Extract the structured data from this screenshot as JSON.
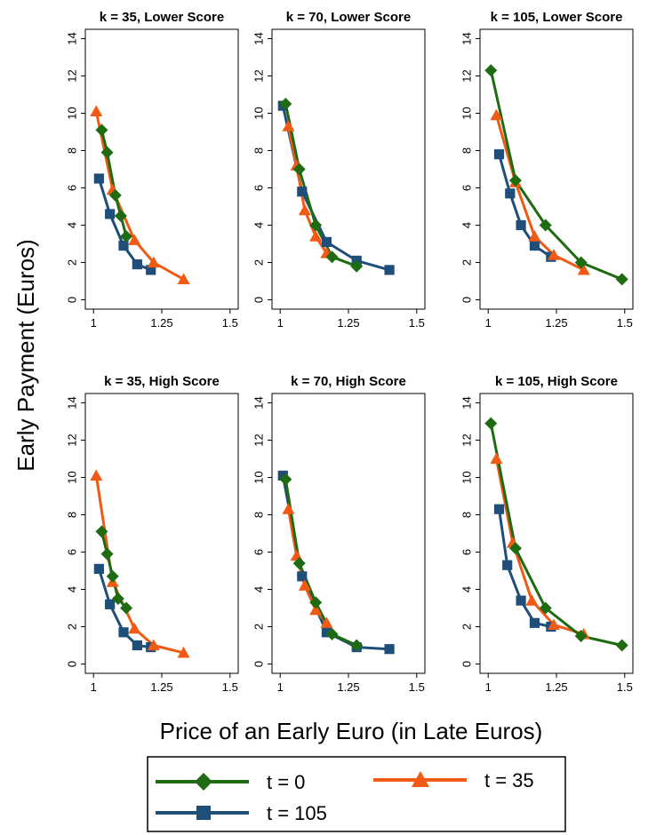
{
  "colors": {
    "t0": "#1e6b12",
    "t35": "#f05a14",
    "t105": "#1f4e79",
    "frame": "#000000",
    "background": "#ffffff"
  },
  "labels": {
    "ylabel": "Early Payment (Euros)",
    "xlabel": "Price of an Early Euro (in Late Euros)"
  },
  "legend": {
    "items": [
      {
        "label": "t = 0",
        "series": "t0",
        "marker": "diamond"
      },
      {
        "label": "t = 35",
        "series": "t35",
        "marker": "triangle"
      },
      {
        "label": "t = 105",
        "series": "t105",
        "marker": "square"
      }
    ]
  },
  "chart_data": [
    {
      "type": "line",
      "title": "k = 35, Lower Score",
      "xticks": [
        "1",
        "1.25",
        "1.5"
      ],
      "yticks": [
        "0",
        "2",
        "4",
        "6",
        "8",
        "10",
        "12",
        "14"
      ],
      "xlim": [
        0.97,
        1.53
      ],
      "ylim": [
        -0.5,
        14.5
      ],
      "series": [
        {
          "key": "t0",
          "x": [
            1.03,
            1.05,
            1.08,
            1.1,
            1.12
          ],
          "y": [
            9.1,
            7.9,
            5.6,
            4.5,
            3.4
          ]
        },
        {
          "key": "t35",
          "x": [
            1.01,
            1.07,
            1.15,
            1.22,
            1.33
          ],
          "y": [
            10.1,
            5.9,
            3.2,
            2.0,
            1.1
          ]
        },
        {
          "key": "t105",
          "x": [
            1.02,
            1.06,
            1.11,
            1.16,
            1.21
          ],
          "y": [
            6.5,
            4.6,
            2.9,
            1.9,
            1.6
          ]
        }
      ]
    },
    {
      "type": "line",
      "title": "k = 70, Lower Score",
      "xticks": [
        "1",
        "1.25",
        "1.5"
      ],
      "yticks": [
        "0",
        "2",
        "4",
        "6",
        "8",
        "10",
        "12",
        "14"
      ],
      "xlim": [
        0.97,
        1.53
      ],
      "ylim": [
        -0.5,
        14.5
      ],
      "series": [
        {
          "key": "t0",
          "x": [
            1.02,
            1.07,
            1.13,
            1.19,
            1.28
          ],
          "y": [
            10.5,
            7.0,
            4.0,
            2.3,
            1.8
          ]
        },
        {
          "key": "t35",
          "x": [
            1.03,
            1.06,
            1.09,
            1.13,
            1.17
          ],
          "y": [
            9.3,
            7.2,
            4.8,
            3.4,
            2.5
          ]
        },
        {
          "key": "t105",
          "x": [
            1.01,
            1.08,
            1.17,
            1.28,
            1.4
          ],
          "y": [
            10.4,
            5.8,
            3.1,
            2.1,
            1.6
          ]
        }
      ]
    },
    {
      "type": "line",
      "title": "k = 105, Lower Score",
      "xticks": [
        "1",
        "1.25",
        "1.5"
      ],
      "yticks": [
        "0",
        "2",
        "4",
        "6",
        "8",
        "10",
        "12",
        "14"
      ],
      "xlim": [
        0.97,
        1.53
      ],
      "ylim": [
        -0.5,
        14.5
      ],
      "series": [
        {
          "key": "t0",
          "x": [
            1.01,
            1.1,
            1.21,
            1.34,
            1.49
          ],
          "y": [
            12.3,
            6.4,
            4.0,
            2.0,
            1.1
          ]
        },
        {
          "key": "t35",
          "x": [
            1.03,
            1.1,
            1.17,
            1.24,
            1.35
          ],
          "y": [
            9.9,
            6.3,
            3.4,
            2.4,
            1.6
          ]
        },
        {
          "key": "t105",
          "x": [
            1.04,
            1.08,
            1.12,
            1.17,
            1.23
          ],
          "y": [
            7.8,
            5.7,
            4.0,
            2.9,
            2.3
          ]
        }
      ]
    },
    {
      "type": "line",
      "title": "k = 35, High Score",
      "xticks": [
        "1",
        "1.25",
        "1.5"
      ],
      "yticks": [
        "0",
        "2",
        "4",
        "6",
        "8",
        "10",
        "12",
        "14"
      ],
      "xlim": [
        0.97,
        1.53
      ],
      "ylim": [
        -0.5,
        14.5
      ],
      "series": [
        {
          "key": "t0",
          "x": [
            1.03,
            1.05,
            1.07,
            1.09,
            1.12
          ],
          "y": [
            7.1,
            5.9,
            4.7,
            3.5,
            3.0
          ]
        },
        {
          "key": "t35",
          "x": [
            1.01,
            1.07,
            1.15,
            1.22,
            1.33
          ],
          "y": [
            10.1,
            4.4,
            1.9,
            1.0,
            0.6
          ]
        },
        {
          "key": "t105",
          "x": [
            1.02,
            1.06,
            1.11,
            1.16,
            1.21
          ],
          "y": [
            5.1,
            3.2,
            1.7,
            1.0,
            0.9
          ]
        }
      ]
    },
    {
      "type": "line",
      "title": "k = 70, High Score",
      "xticks": [
        "1",
        "1.25",
        "1.5"
      ],
      "yticks": [
        "0",
        "2",
        "4",
        "6",
        "8",
        "10",
        "12",
        "14"
      ],
      "xlim": [
        0.97,
        1.53
      ],
      "ylim": [
        -0.5,
        14.5
      ],
      "series": [
        {
          "key": "t0",
          "x": [
            1.02,
            1.07,
            1.13,
            1.19,
            1.28
          ],
          "y": [
            9.9,
            5.4,
            3.3,
            1.6,
            1.0
          ]
        },
        {
          "key": "t35",
          "x": [
            1.03,
            1.06,
            1.09,
            1.13,
            1.17
          ],
          "y": [
            8.3,
            5.8,
            4.2,
            2.9,
            2.2
          ]
        },
        {
          "key": "t105",
          "x": [
            1.01,
            1.08,
            1.17,
            1.28,
            1.4
          ],
          "y": [
            10.1,
            4.7,
            1.7,
            0.9,
            0.8
          ]
        }
      ]
    },
    {
      "type": "line",
      "title": "k = 105, High Score",
      "xticks": [
        "1",
        "1.25",
        "1.5"
      ],
      "yticks": [
        "0",
        "2",
        "4",
        "6",
        "8",
        "10",
        "12",
        "14"
      ],
      "xlim": [
        0.97,
        1.53
      ],
      "ylim": [
        -0.5,
        14.5
      ],
      "series": [
        {
          "key": "t0",
          "x": [
            1.01,
            1.1,
            1.21,
            1.34,
            1.49
          ],
          "y": [
            12.9,
            6.2,
            3.0,
            1.5,
            1.0
          ]
        },
        {
          "key": "t35",
          "x": [
            1.03,
            1.09,
            1.16,
            1.24,
            1.35
          ],
          "y": [
            11.0,
            6.5,
            3.4,
            2.1,
            1.6
          ]
        },
        {
          "key": "t105",
          "x": [
            1.04,
            1.07,
            1.12,
            1.17,
            1.23
          ],
          "y": [
            8.3,
            5.3,
            3.4,
            2.2,
            2.0
          ]
        }
      ]
    }
  ]
}
